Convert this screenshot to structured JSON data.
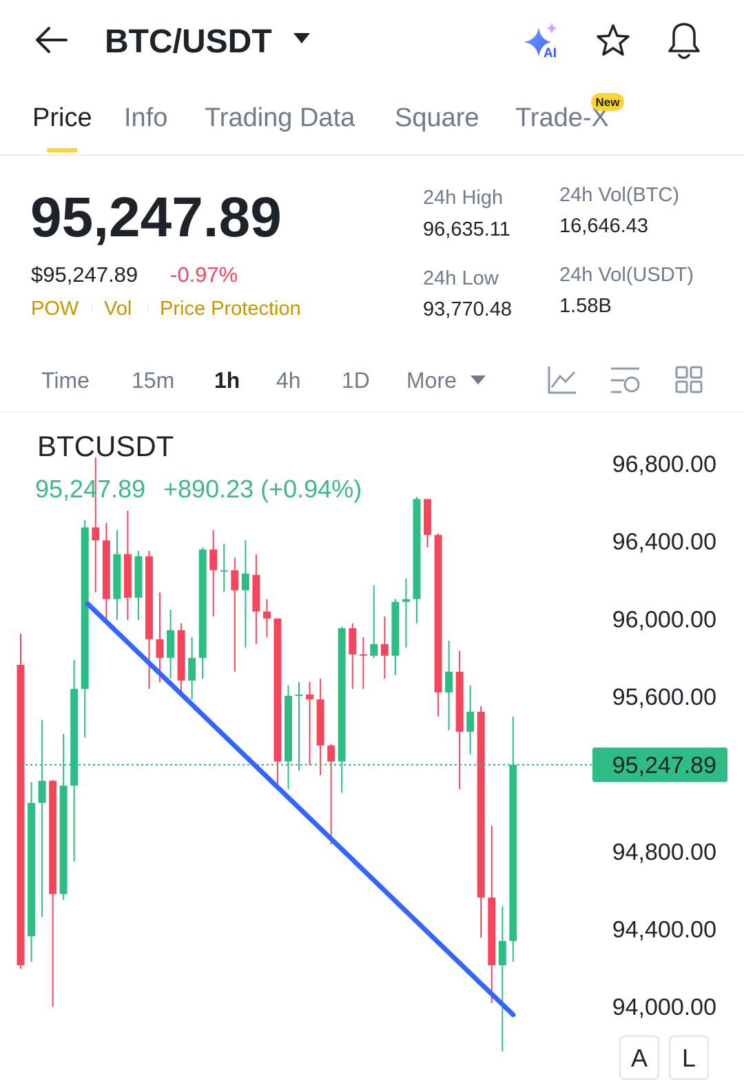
{
  "header": {
    "title": "BTC/USDT",
    "ai_label": "AI"
  },
  "tabs": {
    "items": [
      "Price",
      "Info",
      "Trading Data",
      "Square",
      "Trade-X"
    ],
    "active": 0,
    "badge": "New"
  },
  "ticker": {
    "price": "95,247.89",
    "usd_price": "$95,247.89",
    "change": "-0.97%",
    "tags": [
      "POW",
      "Vol",
      "Price Protection"
    ],
    "stats": [
      {
        "label": "24h High",
        "value": "96,635.11"
      },
      {
        "label": "24h Vol(BTC)",
        "value": "16,646.43"
      },
      {
        "label": "24h Low",
        "value": "93,770.48"
      },
      {
        "label": "24h Vol(USDT)",
        "value": "1.58B"
      }
    ]
  },
  "intervals": {
    "items": [
      "Time",
      "15m",
      "1h",
      "4h",
      "1D",
      "More"
    ],
    "active": 2
  },
  "chart_data": {
    "type": "candlestick",
    "title": "BTCUSDT",
    "legend": {
      "price": "95,247.89",
      "change": "+890.23 (+0.94%)"
    },
    "up_color": "#2ebd85",
    "down_color": "#f6465d",
    "current_price": {
      "value": 95247.89,
      "label": "95,247.89"
    },
    "ylim": [
      93560,
      97060
    ],
    "yticks": [
      {
        "value": 96800,
        "label": "96,800.00"
      },
      {
        "value": 96400,
        "label": "96,400.00"
      },
      {
        "value": 96000,
        "label": "96,000.00"
      },
      {
        "value": 95600,
        "label": "95,600.00"
      },
      {
        "value": 94800,
        "label": "94,800.00"
      },
      {
        "value": 94400,
        "label": "94,400.00"
      },
      {
        "value": 94000,
        "label": "94,000.00"
      }
    ],
    "candles": [
      {
        "open": 95763,
        "high": 95924,
        "low": 94196,
        "close": 94214
      },
      {
        "open": 94364,
        "high": 95158,
        "low": 94232,
        "close": 95051
      },
      {
        "open": 95051,
        "high": 95478,
        "low": 94463,
        "close": 95165
      },
      {
        "open": 95165,
        "high": 95170,
        "low": 94000,
        "close": 94581
      },
      {
        "open": 94581,
        "high": 95407,
        "low": 94552,
        "close": 95140
      },
      {
        "open": 95140,
        "high": 95788,
        "low": 94748,
        "close": 95639
      },
      {
        "open": 95639,
        "high": 96511,
        "low": 95389,
        "close": 96472
      },
      {
        "open": 96472,
        "high": 96832,
        "low": 96137,
        "close": 96405
      },
      {
        "open": 96405,
        "high": 96494,
        "low": 95977,
        "close": 96102
      },
      {
        "open": 96102,
        "high": 96458,
        "low": 95995,
        "close": 96334
      },
      {
        "open": 96334,
        "high": 96558,
        "low": 95995,
        "close": 96109
      },
      {
        "open": 96109,
        "high": 96351,
        "low": 95995,
        "close": 96323
      },
      {
        "open": 96323,
        "high": 96351,
        "low": 95639,
        "close": 95895
      },
      {
        "open": 95895,
        "high": 96137,
        "low": 95674,
        "close": 95799
      },
      {
        "open": 95799,
        "high": 96048,
        "low": 95692,
        "close": 95942
      },
      {
        "open": 95942,
        "high": 95977,
        "low": 95621,
        "close": 95682
      },
      {
        "open": 95682,
        "high": 95906,
        "low": 95585,
        "close": 95799
      },
      {
        "open": 95799,
        "high": 96369,
        "low": 95692,
        "close": 96358
      },
      {
        "open": 96358,
        "high": 96458,
        "low": 96013,
        "close": 96251
      },
      {
        "open": 96244,
        "high": 96387,
        "low": 96137,
        "close": 96251
      },
      {
        "open": 96251,
        "high": 96316,
        "low": 95728,
        "close": 96148
      },
      {
        "open": 96148,
        "high": 96405,
        "low": 95852,
        "close": 96234
      },
      {
        "open": 96227,
        "high": 96334,
        "low": 95870,
        "close": 96038
      },
      {
        "open": 96038,
        "high": 96102,
        "low": 95906,
        "close": 96002
      },
      {
        "open": 96002,
        "high": 96002,
        "low": 95122,
        "close": 95265
      },
      {
        "open": 95265,
        "high": 95657,
        "low": 95122,
        "close": 95603
      },
      {
        "open": 95603,
        "high": 95674,
        "low": 95218,
        "close": 95610
      },
      {
        "open": 95610,
        "high": 95674,
        "low": 95247,
        "close": 95585
      },
      {
        "open": 95585,
        "high": 95692,
        "low": 95194,
        "close": 95347
      },
      {
        "open": 95347,
        "high": 95354,
        "low": 94837,
        "close": 95265
      },
      {
        "open": 95265,
        "high": 95959,
        "low": 95104,
        "close": 95952
      },
      {
        "open": 95952,
        "high": 95977,
        "low": 95639,
        "close": 95817
      },
      {
        "open": 95817,
        "high": 95906,
        "low": 95639,
        "close": 95810
      },
      {
        "open": 95810,
        "high": 96173,
        "low": 95799,
        "close": 95870
      },
      {
        "open": 95870,
        "high": 96013,
        "low": 95692,
        "close": 95810
      },
      {
        "open": 95810,
        "high": 96102,
        "low": 95710,
        "close": 96088
      },
      {
        "open": 96088,
        "high": 96209,
        "low": 95852,
        "close": 96102
      },
      {
        "open": 96102,
        "high": 96629,
        "low": 95977,
        "close": 96618
      },
      {
        "open": 96618,
        "high": 96618,
        "low": 96369,
        "close": 96433
      },
      {
        "open": 96433,
        "high": 96440,
        "low": 95496,
        "close": 95621
      },
      {
        "open": 95621,
        "high": 95888,
        "low": 95425,
        "close": 95728
      },
      {
        "open": 95728,
        "high": 95835,
        "low": 95122,
        "close": 95418
      },
      {
        "open": 95418,
        "high": 95657,
        "low": 95300,
        "close": 95521
      },
      {
        "open": 95521,
        "high": 95550,
        "low": 94356,
        "close": 94563
      },
      {
        "open": 94563,
        "high": 94934,
        "low": 94018,
        "close": 94214
      },
      {
        "open": 94214,
        "high": 94517,
        "low": 93769,
        "close": 94339
      },
      {
        "open": 94339,
        "high": 95496,
        "low": 94232,
        "close": 95247.89
      }
    ]
  },
  "buttons": [
    "A",
    "L"
  ]
}
